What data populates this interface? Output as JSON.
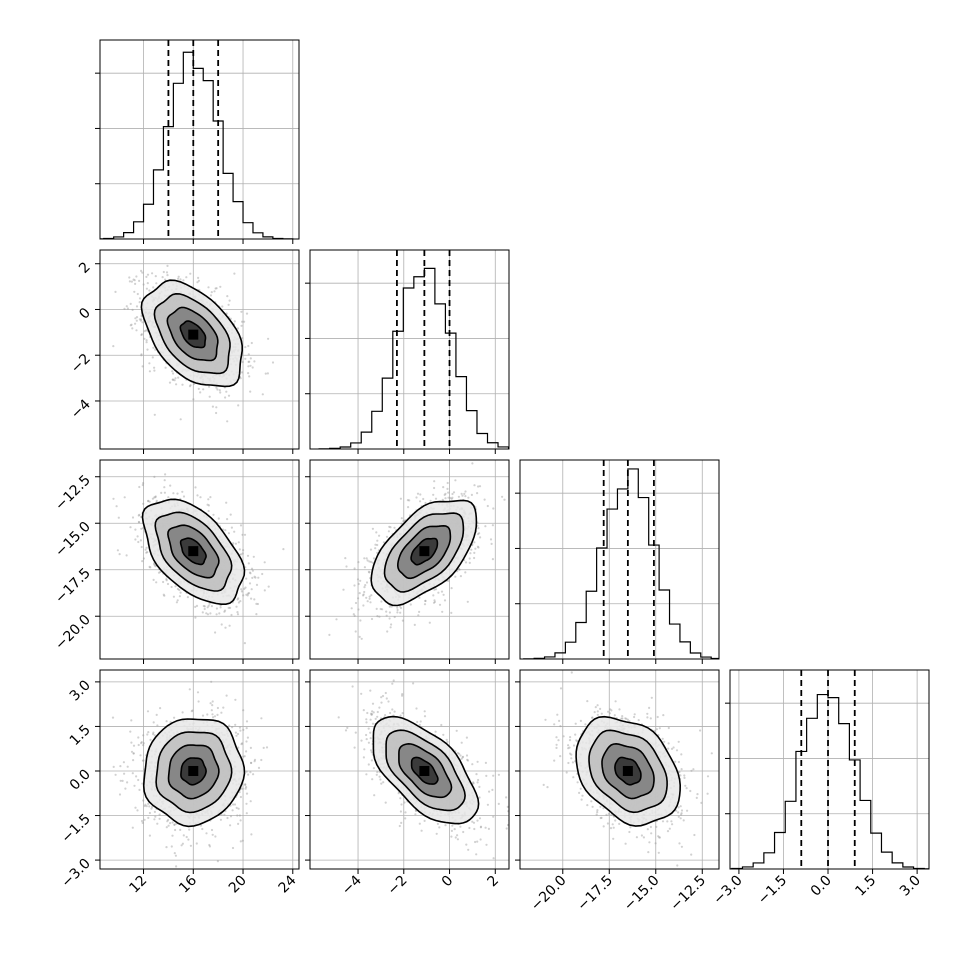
{
  "chart_data": {
    "type": "corner",
    "grid": true,
    "n_params": 4,
    "params": [
      {
        "range": [
          8.5,
          24.5
        ],
        "ticks": [
          12,
          16,
          20,
          24
        ],
        "tick_labels": [
          "12",
          "16",
          "20",
          "24"
        ],
        "mean": 16.0,
        "sd": 2.0,
        "quantiles": [
          14.0,
          16.0,
          18.0
        ],
        "hist_peak": 0.2
      },
      {
        "range": [
          -6.1,
          2.6
        ],
        "ticks": [
          -4,
          -2,
          0,
          2
        ],
        "tick_labels": [
          "−4",
          "−2",
          "0",
          "2"
        ],
        "mean": -1.1,
        "sd": 1.15,
        "quantiles": [
          -2.3,
          -1.1,
          0.0
        ],
        "hist_peak": 0.35
      },
      {
        "range": [
          -22.3,
          -11.6
        ],
        "ticks": [
          -20.0,
          -17.5,
          -15.0,
          -12.5
        ],
        "tick_labels": [
          "−20.0",
          "−17.5",
          "−15.0",
          "−12.5"
        ],
        "mean": -16.5,
        "sd": 1.4,
        "quantiles": [
          -17.8,
          -16.5,
          -15.1
        ],
        "hist_peak": 0.29
      },
      {
        "range": [
          -3.3,
          3.4
        ],
        "ticks": [
          -3.0,
          -1.5,
          0.0,
          1.5,
          3.0
        ],
        "tick_labels": [
          "−3.0",
          "−1.5",
          "0.0",
          "1.5",
          "3.0"
        ],
        "mean": 0.0,
        "sd": 0.9,
        "quantiles": [
          -0.9,
          0.0,
          0.9
        ],
        "hist_peak": 0.45
      }
    ],
    "correlations": [
      [
        1.0,
        -0.45,
        -0.5,
        0.05
      ],
      [
        -0.45,
        1.0,
        0.55,
        -0.6
      ],
      [
        -0.5,
        0.55,
        1.0,
        -0.3
      ],
      [
        0.05,
        -0.6,
        -0.3,
        1.0
      ]
    ],
    "contour_levels_sigma": [
      0.5,
      1.0,
      1.5,
      2.0
    ],
    "colors": {
      "hist": "#000000",
      "scatter": "#9a9a9a",
      "contour": "#000000",
      "grid": "#b0b0b0"
    }
  }
}
